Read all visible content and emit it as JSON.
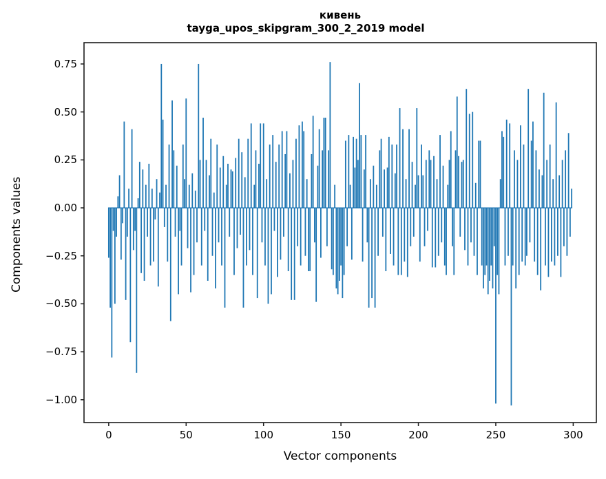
{
  "figure": {
    "title_line1": "кивень",
    "title_line2": "tayga_upos_skipgram_300_2_2019 model",
    "xlabel": "Vector components",
    "ylabel": "Components values",
    "background_color": "#ffffff",
    "axis_color": "#1c1c1c",
    "text_color": "#000000"
  },
  "chart_data": {
    "type": "bar",
    "title": "кивень",
    "subtitle": "tayga_upos_skipgram_300_2_2019 model",
    "xlabel": "Vector components",
    "ylabel": "Components values",
    "bar_color": "#1f77b4",
    "grid": false,
    "legend": "none",
    "n_components": 300,
    "xlim": [
      -15.95,
      314.95
    ],
    "ylim": [
      -1.119,
      0.861
    ],
    "xticks": [
      0,
      50,
      100,
      150,
      200,
      250,
      300
    ],
    "xtick_labels": [
      "0",
      "50",
      "100",
      "150",
      "200",
      "250",
      "300"
    ],
    "yticks": [
      0.75,
      0.5,
      0.25,
      0,
      -0.25,
      -0.5,
      -0.75,
      -1
    ],
    "ytick_labels": [
      "0.75",
      "0.50",
      "0.25",
      "0.00",
      "−0.25",
      "−0.50",
      "−0.75",
      "−1.00"
    ],
    "values": [
      -0.26,
      -0.52,
      -0.78,
      -0.12,
      -0.5,
      -0.15,
      0.06,
      0.17,
      -0.27,
      -0.08,
      0.45,
      -0.48,
      -0.15,
      0.1,
      -0.7,
      0.41,
      -0.22,
      -0.12,
      -0.86,
      0.05,
      0.24,
      -0.34,
      0.2,
      -0.38,
      0.12,
      -0.15,
      0.23,
      -0.3,
      0.1,
      -0.28,
      -0.06,
      0.15,
      -0.41,
      0.08,
      0.75,
      0.46,
      -0.1,
      0.12,
      -0.28,
      0.33,
      -0.59,
      0.56,
      0.3,
      -0.15,
      0.22,
      -0.45,
      -0.12,
      -0.3,
      0.33,
      0.15,
      0.57,
      -0.21,
      0.12,
      -0.44,
      0.18,
      -0.35,
      0.09,
      -0.18,
      0.75,
      0.25,
      -0.3,
      0.47,
      -0.12,
      0.25,
      -0.38,
      0.17,
      0.36,
      -0.25,
      0.08,
      -0.42,
      0.33,
      -0.18,
      0.21,
      -0.3,
      0.27,
      -0.52,
      0.12,
      0.23,
      -0.15,
      0.2,
      0.19,
      -0.35,
      0.26,
      -0.21,
      0.36,
      -0.14,
      0.29,
      -0.52,
      0.16,
      -0.3,
      0.36,
      -0.22,
      0.44,
      -0.35,
      0.12,
      0.3,
      -0.47,
      0.23,
      0.44,
      -0.18,
      0.44,
      -0.3,
      0.15,
      -0.5,
      0.33,
      -0.45,
      0.38,
      -0.12,
      0.24,
      -0.36,
      0.33,
      -0.27,
      0.4,
      -0.15,
      0.28,
      0.4,
      -0.33,
      0.18,
      -0.48,
      0.25,
      -0.48,
      0.36,
      -0.2,
      0.43,
      -0.3,
      0.45,
      0.4,
      -0.25,
      0.15,
      -0.33,
      -0.33,
      0.28,
      0.48,
      -0.18,
      -0.49,
      0.22,
      0.41,
      -0.26,
      0.3,
      0.47,
      0.47,
      -0.2,
      0.3,
      0.76,
      -0.32,
      -0.35,
      0.12,
      -0.42,
      -0.45,
      -0.38,
      -0.3,
      -0.47,
      -0.35,
      0.35,
      -0.2,
      0.38,
      0.12,
      -0.27,
      0.37,
      0.21,
      0.36,
      0.25,
      0.65,
      0.38,
      -0.28,
      0.2,
      0.38,
      -0.18,
      -0.52,
      0.15,
      -0.47,
      0.22,
      -0.52,
      0.12,
      -0.25,
      0.3,
      0.36,
      -0.15,
      0.2,
      -0.33,
      0.21,
      0.37,
      -0.24,
      0.33,
      -0.3,
      0.18,
      0.33,
      -0.35,
      0.52,
      -0.35,
      0.41,
      -0.28,
      0.15,
      -0.36,
      0.41,
      -0.2,
      0.24,
      -0.15,
      0.12,
      0.52,
      0.17,
      -0.28,
      0.33,
      0.17,
      -0.2,
      0.25,
      -0.12,
      0.3,
      0.25,
      -0.31,
      0.27,
      -0.31,
      0.15,
      -0.25,
      0.38,
      -0.18,
      0.22,
      -0.3,
      -0.35,
      0.12,
      0.25,
      0.4,
      -0.2,
      -0.35,
      0.3,
      0.58,
      0.27,
      -0.15,
      0.24,
      0.25,
      -0.22,
      0.62,
      -0.3,
      0.49,
      -0.18,
      0.5,
      -0.25,
      0.13,
      -0.35,
      0.35,
      0.35,
      -0.3,
      -0.42,
      -0.35,
      -0.3,
      -0.45,
      -0.38,
      -0.3,
      -0.42,
      -0.2,
      -1.02,
      -0.35,
      -0.45,
      0.15,
      0.4,
      0.37,
      -0.3,
      0.46,
      -0.25,
      0.44,
      -1.03,
      -0.3,
      0.3,
      -0.42,
      0.25,
      -0.35,
      0.43,
      -0.28,
      0.33,
      -0.3,
      -0.25,
      0.62,
      -0.18,
      0.35,
      0.45,
      -0.28,
      0.3,
      -0.35,
      0.2,
      -0.43,
      0.17,
      0.6,
      -0.3,
      0.25,
      -0.36,
      0.33,
      -0.28,
      0.15,
      -0.3,
      0.55,
      -0.25,
      0.17,
      -0.36,
      0.25,
      -0.2,
      0.3,
      -0.25,
      0.39,
      -0.15,
      0.1
    ]
  }
}
